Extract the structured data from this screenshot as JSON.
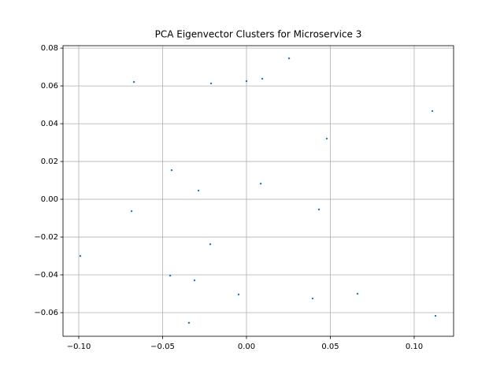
{
  "chart_data": {
    "type": "scatter",
    "title": "PCA Eigenvector Clusters for Microservice 3",
    "series": [
      {
        "color": "#1f77b4",
        "x": [
          -0.0671,
          -0.0211,
          0.0,
          0.0094,
          0.0254,
          0.1108,
          0.0479,
          -0.0446,
          -0.0286,
          0.0085,
          -0.0685,
          0.0432,
          -0.0991,
          -0.0216,
          -0.0455,
          -0.031,
          -0.0047,
          0.0394,
          0.0662,
          -0.0343,
          0.1127
        ],
        "values": [
          0.0621,
          0.0613,
          0.0625,
          0.0638,
          0.0746,
          0.0467,
          0.0321,
          0.0154,
          0.0046,
          0.0083,
          -0.0063,
          -0.0054,
          -0.03,
          -0.0238,
          -0.0404,
          -0.0429,
          -0.0504,
          -0.0525,
          -0.05,
          -0.0654,
          -0.0617
        ]
      }
    ],
    "xlim": [
      -0.1094,
      0.1235
    ],
    "xticks": [
      {
        "value": -0.1,
        "label": "−0.10"
      },
      {
        "value": -0.05,
        "label": "−0.05"
      },
      {
        "value": 0,
        "label": "0.00"
      },
      {
        "value": 0.05,
        "label": "0.05"
      },
      {
        "value": 0.1,
        "label": "0.10"
      }
    ],
    "ylim": [
      -0.0725,
      0.0813
    ],
    "yticks": [
      {
        "value": -0.06,
        "label": "−0.06"
      },
      {
        "value": -0.04,
        "label": "−0.04"
      },
      {
        "value": -0.02,
        "label": "−0.02"
      },
      {
        "value": 0,
        "label": "0.00"
      },
      {
        "value": 0.02,
        "label": "0.02"
      },
      {
        "value": 0.04,
        "label": "0.04"
      },
      {
        "value": 0.06,
        "label": "0.06"
      },
      {
        "value": 0.08,
        "label": "0.08"
      }
    ],
    "grid": true
  }
}
